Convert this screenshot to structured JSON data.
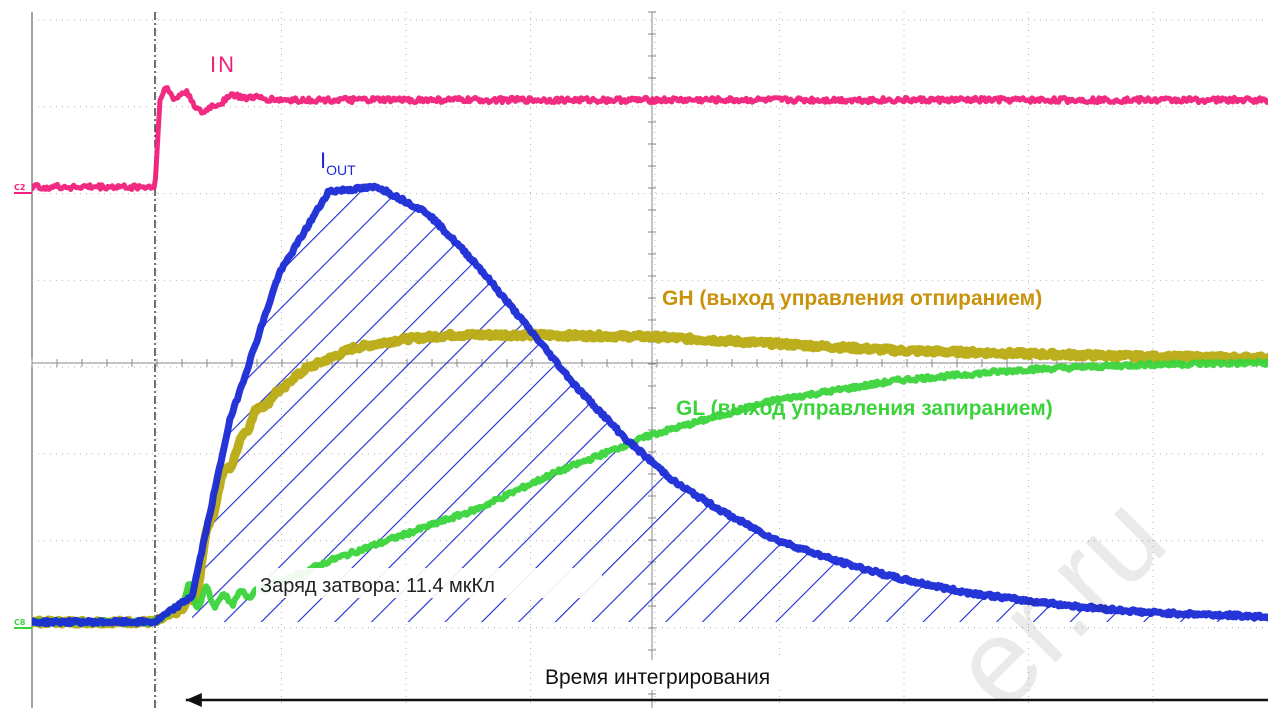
{
  "chart_data": {
    "type": "line",
    "title": "",
    "xlabel": "",
    "ylabel": "",
    "grid": true,
    "xlim": [
      0,
      10
    ],
    "ylim": [
      0,
      8
    ],
    "x_divisions": 10,
    "y_divisions": 8,
    "series": [
      {
        "name": "IN",
        "color": "#f0207a",
        "x": [
          0,
          1.0,
          1.02,
          1.1,
          1.2,
          1.3,
          1.5,
          2.0,
          4.0,
          6.0,
          8.0,
          10.0
        ],
        "y": [
          5.0,
          5.0,
          6.0,
          6.1,
          5.85,
          6.05,
          6.0,
          6.0,
          6.0,
          6.0,
          6.0,
          6.0
        ]
      },
      {
        "name": "I_OUT",
        "label_main": "I",
        "label_sub": "OUT",
        "color": "#1a2ad6",
        "x": [
          0,
          1.0,
          1.15,
          1.3,
          1.5,
          1.7,
          1.9,
          2.1,
          2.3,
          2.5,
          2.7,
          2.9,
          3.1,
          3.3,
          3.5,
          3.75,
          4.0,
          4.25,
          4.5,
          4.75,
          5.0,
          5.5,
          6.0,
          6.5,
          7.0,
          8.0,
          9.0,
          10.0
        ],
        "y": [
          0.0,
          0.0,
          0.3,
          2.3,
          4.0,
          4.95,
          5.0,
          4.7,
          4.1,
          3.4,
          2.7,
          2.1,
          1.6,
          1.25,
          0.95,
          0.7,
          0.5,
          0.35,
          0.25,
          0.17,
          0.11,
          0.06,
          0.03,
          0.015,
          0.01,
          0.005,
          0.0,
          0.0
        ]
      },
      {
        "name": "GH",
        "color": "#b8aa10",
        "x": [
          0,
          1.0,
          1.15,
          1.25,
          1.4,
          1.6,
          1.8,
          2.0,
          2.2,
          2.5,
          3.0,
          3.5,
          4.0,
          5.0,
          6.0,
          7.0,
          8.0,
          9.0,
          10.0
        ],
        "y": [
          0.0,
          0.0,
          0.2,
          1.5,
          2.4,
          2.9,
          3.15,
          3.25,
          3.3,
          3.3,
          3.28,
          3.2,
          3.12,
          3.05,
          3.02,
          3.0,
          3.0,
          3.0,
          3.0
        ]
      },
      {
        "name": "GL",
        "color": "#3ad43a",
        "x": [
          0,
          1.0,
          1.15,
          1.3,
          1.5,
          1.7,
          2.0,
          2.3,
          2.6,
          3.0,
          3.5,
          4.0,
          4.5,
          5.0,
          6.0,
          7.0,
          8.0,
          9.0,
          10.0
        ],
        "y": [
          0.0,
          0.0,
          0.3,
          0.25,
          0.45,
          0.7,
          1.0,
          1.3,
          1.7,
          2.15,
          2.55,
          2.78,
          2.9,
          2.96,
          3.0,
          3.0,
          3.0,
          3.0,
          3.0
        ]
      }
    ],
    "shaded_region": {
      "series": "I_OUT",
      "x_range": [
        1.15,
        6.0
      ],
      "pattern": "diagonal-hatch",
      "color": "#1a2ad6"
    },
    "annotations": [
      {
        "id": "gh",
        "text": "GH (выход управления отпиранием)",
        "color": "#c8920a"
      },
      {
        "id": "gl",
        "text": "GL (выход управления запиранием)",
        "color": "#3ad43a"
      },
      {
        "id": "charge",
        "text": "Заряд затвора: 11.4 мкКл",
        "color": "#222222"
      },
      {
        "id": "integration",
        "text": "Время интегрирования",
        "color": "#111111",
        "x_range": [
          1.1,
          9.5
        ]
      }
    ],
    "markers": [
      {
        "text": "C2",
        "color": "#f0207a",
        "level": 5.0
      },
      {
        "text": "C8",
        "color": "#3ad43a",
        "level": 0.0
      }
    ],
    "cursors_x": [
      1.0,
      9.5
    ]
  }
}
